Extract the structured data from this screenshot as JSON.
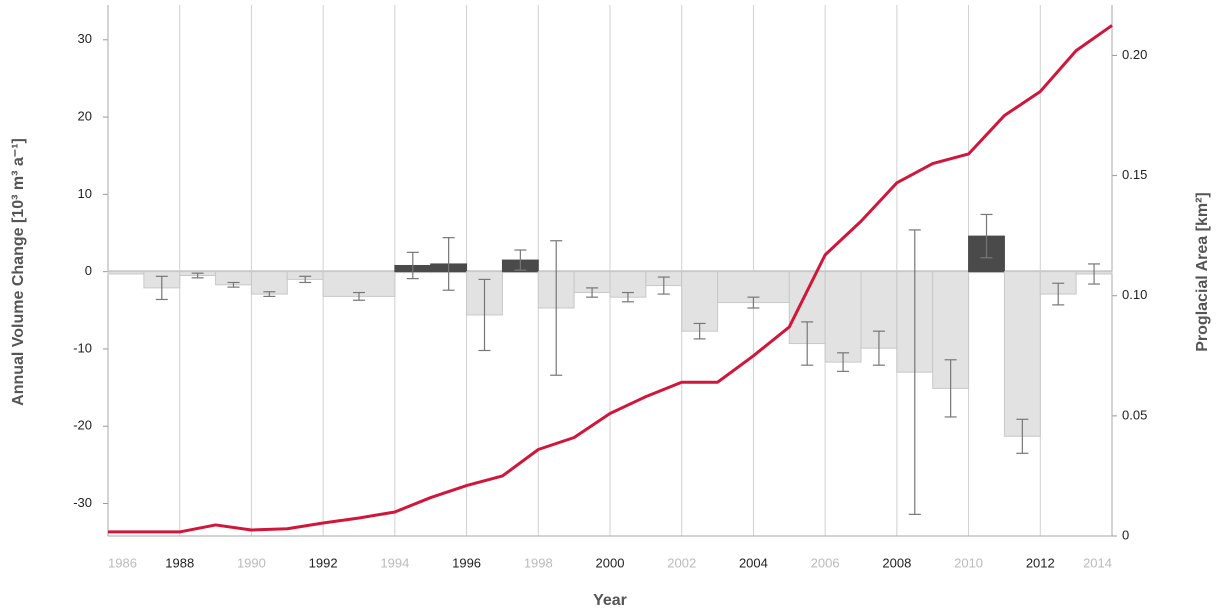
{
  "chart_data": {
    "type": "bar-line",
    "x_label": "Year",
    "y_label": "Annual Volume Change [10³ m³ a⁻¹]",
    "y2_label": "Proglacial Area [km²]",
    "xlim": [
      1986,
      2014
    ],
    "xticks": [
      1986,
      1988,
      1990,
      1992,
      1994,
      1996,
      1998,
      2000,
      2002,
      2004,
      2006,
      2008,
      2010,
      2012,
      2014
    ],
    "ylim": [
      -34.2,
      34.5
    ],
    "yticks": [
      -30,
      -20,
      -10,
      0,
      10,
      20,
      30
    ],
    "y2lim": [
      0,
      0.221
    ],
    "y2ticks": [
      0,
      0.05,
      {
        "value": 0.1,
        "label": "0.10"
      },
      0.15,
      {
        "value": 0.2,
        "label": "0.20"
      }
    ],
    "grid": true,
    "bars": {
      "positive_color": "#4a4a4a",
      "negative_color": "#e2e2e2",
      "x_start": [
        1986,
        1987,
        1988,
        1989,
        1990,
        1991,
        1992,
        1994,
        1995,
        1996,
        1997,
        1998,
        1999,
        2000,
        2001,
        2002,
        2003,
        2005,
        2006,
        2007,
        2008,
        2009,
        2010,
        2011,
        2012,
        2013
      ],
      "x_end": [
        1987,
        1988,
        1989,
        1990,
        1991,
        1992,
        1994,
        1995,
        1996,
        1997,
        1998,
        1999,
        2000,
        2001,
        2002,
        2003,
        2005,
        2006,
        2007,
        2008,
        2009,
        2010,
        2011,
        2012,
        2013,
        2014
      ],
      "values": [
        -0.3,
        -2.1,
        -0.5,
        -1.7,
        -2.9,
        -1.0,
        -3.2,
        0.8,
        1.0,
        -5.6,
        1.5,
        -4.7,
        -2.7,
        -3.3,
        -1.8,
        -7.7,
        -4.0,
        -9.3,
        -11.7,
        -9.9,
        -13.0,
        -15.1,
        4.6,
        -21.3,
        -2.9,
        -0.3
      ],
      "errors": [
        null,
        1.5,
        0.3,
        0.3,
        0.3,
        0.4,
        0.5,
        1.7,
        3.4,
        4.6,
        1.3,
        8.7,
        0.6,
        0.6,
        1.1,
        1.0,
        0.7,
        2.8,
        1.2,
        2.2,
        18.4,
        3.7,
        2.8,
        2.2,
        1.4,
        1.3
      ]
    },
    "line": {
      "color": "#d0163a",
      "axis": "y2",
      "x": [
        1986,
        1987,
        1988,
        1989,
        1990,
        1991,
        1992,
        1993,
        1994,
        1995,
        1996,
        1997,
        1998,
        1999,
        2000,
        2001,
        2002,
        2003,
        2004,
        2005,
        2006,
        2007,
        2008,
        2009,
        2010,
        2011,
        2012,
        2013,
        2014
      ],
      "values": [
        0.0017,
        0.0017,
        0.0017,
        0.0046,
        0.0025,
        0.003,
        0.0054,
        0.0075,
        0.01,
        0.016,
        0.021,
        0.025,
        0.036,
        0.041,
        0.051,
        0.058,
        0.064,
        0.064,
        0.075,
        0.087,
        0.117,
        0.131,
        0.147,
        0.155,
        0.159,
        0.175,
        0.185,
        0.202,
        0.2125
      ]
    }
  }
}
